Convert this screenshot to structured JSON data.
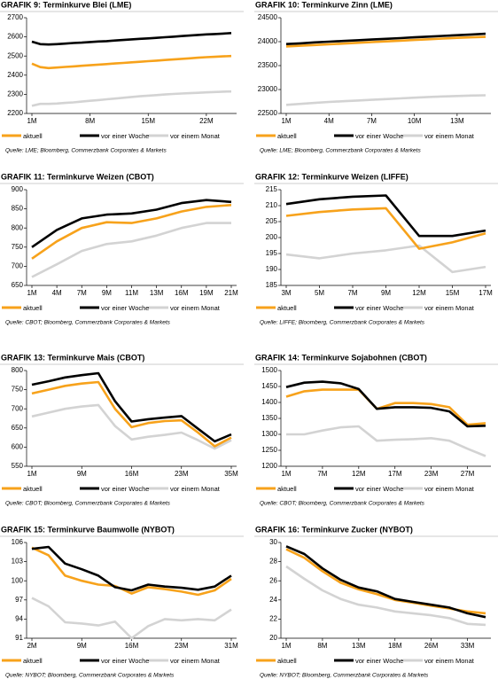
{
  "chart_data": [
    {
      "type": "line",
      "title": "GRAFIK 9: Terminkurve Blei (LME)",
      "source": "Quelle: LME; Bloomberg, Commerzbank Corporates & Markets",
      "categories": [
        "1M",
        null,
        null,
        null,
        null,
        null,
        null,
        "8M",
        null,
        null,
        null,
        null,
        null,
        null,
        "15M",
        null,
        null,
        null,
        null,
        null,
        null,
        "22M",
        null,
        null,
        null
      ],
      "ylim": [
        2200,
        2700
      ],
      "yticks": [
        2200,
        2300,
        2400,
        2500,
        2600,
        2700
      ],
      "series": [
        {
          "name": "aktuell",
          "color": "#f7a21b",
          "values": [
            2460,
            2442,
            2437,
            2440,
            2443,
            2446,
            2449,
            2452,
            2455,
            2458,
            2461,
            2464,
            2467,
            2470,
            2473,
            2476,
            2479,
            2482,
            2485,
            2488,
            2491,
            2494,
            2496,
            2498,
            2500
          ]
        },
        {
          "name": "vor einer Woche",
          "color": "#000000",
          "values": [
            2575,
            2562,
            2560,
            2562,
            2565,
            2568,
            2570,
            2573,
            2576,
            2578,
            2581,
            2584,
            2587,
            2590,
            2592,
            2595,
            2598,
            2601,
            2604,
            2607,
            2610,
            2613,
            2615,
            2617,
            2620
          ]
        },
        {
          "name": "vor einem Monat",
          "color": "#d3d3d3",
          "values": [
            2240,
            2250,
            2250,
            2252,
            2255,
            2258,
            2262,
            2266,
            2270,
            2274,
            2278,
            2282,
            2286,
            2290,
            2293,
            2296,
            2299,
            2302,
            2304,
            2306,
            2308,
            2310,
            2312,
            2314,
            2315
          ]
        }
      ]
    },
    {
      "type": "line",
      "title": "GRAFIK 10: Terminkurve Zinn (LME)",
      "source": "Quelle: LME; Bloomberg, Commerzbank Corporates & Markets",
      "categories": [
        "1M",
        null,
        null,
        "4M",
        null,
        null,
        "7M",
        null,
        null,
        "10M",
        null,
        null,
        "13M",
        null,
        null
      ],
      "ylim": [
        22500,
        24500
      ],
      "yticks": [
        22500,
        23000,
        23500,
        24000,
        24500
      ],
      "series": [
        {
          "name": "aktuell",
          "color": "#f7a21b",
          "values": [
            23900,
            23915,
            23930,
            23945,
            23960,
            23975,
            23990,
            24005,
            24020,
            24035,
            24050,
            24065,
            24080,
            24090,
            24100
          ]
        },
        {
          "name": "vor einer Woche",
          "color": "#000000",
          "values": [
            23950,
            23965,
            23985,
            24000,
            24015,
            24030,
            24045,
            24060,
            24075,
            24090,
            24105,
            24120,
            24135,
            24150,
            24165
          ]
        },
        {
          "name": "vor einem Monat",
          "color": "#d3d3d3",
          "values": [
            22680,
            22700,
            22720,
            22740,
            22755,
            22770,
            22785,
            22800,
            22815,
            22830,
            22845,
            22855,
            22865,
            22875,
            22880
          ]
        }
      ]
    },
    {
      "type": "line",
      "title": "GRAFIK 11: Terminkurve Weizen (CBOT)",
      "source": "Quelle: CBOT; Bloomberg, Commerzbank Corporates & Markets",
      "categories": [
        "1M",
        "4M",
        "7M",
        "9M",
        "11M",
        "13M",
        "16M",
        "19M",
        "21M"
      ],
      "ylim": [
        650,
        900
      ],
      "yticks": [
        650,
        700,
        750,
        800,
        850,
        900
      ],
      "series": [
        {
          "name": "aktuell",
          "color": "#f7a21b",
          "values": [
            720,
            765,
            800,
            815,
            813,
            825,
            843,
            855,
            860
          ]
        },
        {
          "name": "vor einer Woche",
          "color": "#000000",
          "values": [
            750,
            795,
            825,
            835,
            838,
            848,
            865,
            873,
            868
          ]
        },
        {
          "name": "vor einem Monat",
          "color": "#d3d3d3",
          "values": [
            672,
            705,
            740,
            758,
            765,
            780,
            800,
            813,
            813
          ]
        }
      ]
    },
    {
      "type": "line",
      "title": "GRAFIK 12: Terminkurve Weizen (LIFFE)",
      "source": "Quelle: LIFFE; Bloomberg, Commerzbank Corporates & Markets",
      "categories": [
        "3M",
        "5M",
        "7M",
        "9M",
        "12M",
        "15M",
        "17M"
      ],
      "ylim": [
        185,
        215
      ],
      "yticks": [
        185,
        190,
        195,
        200,
        205,
        210,
        215
      ],
      "series": [
        {
          "name": "aktuell",
          "color": "#f7a21b",
          "values": [
            206.8,
            208,
            208.8,
            209.2,
            196.5,
            198.5,
            201.3
          ]
        },
        {
          "name": "vor einer Woche",
          "color": "#000000",
          "values": [
            210.5,
            212,
            212.8,
            213.2,
            200.5,
            200.5,
            202.2
          ]
        },
        {
          "name": "vor einem Monat",
          "color": "#d3d3d3",
          "values": [
            194.7,
            193.5,
            195,
            196,
            197.5,
            189.2,
            190.8
          ]
        }
      ]
    },
    {
      "type": "line",
      "title": "GRAFIK 13: Terminkurve Mais (CBOT)",
      "source": "Quelle: CBOT; Bloomberg, Commerzbank Corporates & Markets",
      "categories": [
        "1M",
        null,
        null,
        "9M",
        null,
        null,
        "16M",
        null,
        null,
        "23M",
        null,
        null,
        "35M"
      ],
      "ylim": [
        550,
        800
      ],
      "yticks": [
        550,
        600,
        650,
        700,
        750,
        800
      ],
      "series": [
        {
          "name": "aktuell",
          "color": "#f7a21b",
          "values": [
            740,
            750,
            760,
            766,
            770,
            700,
            652,
            663,
            668,
            670,
            638,
            602,
            625
          ]
        },
        {
          "name": "vor einer Woche",
          "color": "#000000",
          "values": [
            763,
            772,
            782,
            788,
            793,
            720,
            667,
            673,
            677,
            681,
            648,
            615,
            633
          ]
        },
        {
          "name": "vor einem Monat",
          "color": "#d3d3d3",
          "values": [
            680,
            690,
            700,
            706,
            710,
            655,
            620,
            627,
            632,
            638,
            618,
            596,
            618
          ]
        }
      ]
    },
    {
      "type": "line",
      "title": "GRAFIK 14: Terminkurve Sojabohnen (CBOT)",
      "source": "Quelle: CBOT; Bloomberg, Commerzbank Corporates & Markets",
      "categories": [
        "1M",
        null,
        "7M",
        null,
        "12M",
        null,
        "17M",
        null,
        "23M",
        null,
        "27M",
        null
      ],
      "ylim": [
        1200,
        1500
      ],
      "yticks": [
        1200,
        1250,
        1300,
        1350,
        1400,
        1450,
        1500
      ],
      "series": [
        {
          "name": "aktuell",
          "color": "#f7a21b",
          "values": [
            1418,
            1435,
            1440,
            1440,
            1440,
            1380,
            1398,
            1398,
            1395,
            1385,
            1330,
            1335
          ]
        },
        {
          "name": "vor einer Woche",
          "color": "#000000",
          "values": [
            1448,
            1462,
            1465,
            1460,
            1442,
            1380,
            1385,
            1385,
            1383,
            1372,
            1325,
            1327
          ]
        },
        {
          "name": "vor einem Monat",
          "color": "#d3d3d3",
          "values": [
            1300,
            1300,
            1312,
            1322,
            1325,
            1280,
            1283,
            1285,
            1288,
            1280,
            1255,
            1232
          ]
        }
      ]
    },
    {
      "type": "line",
      "title": "GRAFIK 15: Terminkurve Baumwolle (NYBOT)",
      "source": "Quelle: NYBOT; Bloomberg, Commerzbank Corporates & Markets",
      "categories": [
        "2M",
        null,
        null,
        "9M",
        null,
        null,
        "16M",
        null,
        null,
        "23M",
        null,
        null,
        "31M"
      ],
      "ylim": [
        91,
        106
      ],
      "yticks": [
        91,
        94,
        97,
        100,
        103,
        106
      ],
      "series": [
        {
          "name": "aktuell",
          "color": "#f7a21b",
          "values": [
            105.2,
            104,
            100.8,
            100,
            99.4,
            99.2,
            98,
            99,
            98.7,
            98.3,
            97.8,
            98.5,
            100.3
          ]
        },
        {
          "name": "vor einer Woche",
          "color": "#000000",
          "values": [
            105,
            105.3,
            102.7,
            101.8,
            100.8,
            99,
            98.5,
            99.4,
            99.1,
            98.9,
            98.6,
            99.1,
            100.8
          ]
        },
        {
          "name": "vor einem Monat",
          "color": "#d3d3d3",
          "values": [
            97.3,
            96,
            93.5,
            93.3,
            93,
            93.6,
            91,
            92.9,
            94,
            93.8,
            94,
            93.8,
            95.5
          ]
        }
      ]
    },
    {
      "type": "line",
      "title": "GRAFIK 16: Terminkurve Zucker (NYBOT)",
      "source": "Quelle: NYBOT; Bloomberg, Commerzbank Corporates & Markets",
      "categories": [
        "1M",
        null,
        "8M",
        null,
        "13M",
        null,
        "18M",
        null,
        "26M",
        null,
        "33M",
        null
      ],
      "ylim": [
        20,
        30
      ],
      "yticks": [
        20,
        22,
        24,
        26,
        28,
        30
      ],
      "series": [
        {
          "name": "aktuell",
          "color": "#f7a21b",
          "values": [
            29.3,
            28.4,
            27,
            25.8,
            25.1,
            24.6,
            24,
            23.7,
            23.4,
            23.1,
            22.8,
            22.6
          ]
        },
        {
          "name": "vor einer Woche",
          "color": "#000000",
          "values": [
            29.6,
            28.8,
            27.3,
            26.1,
            25.3,
            24.9,
            24.1,
            23.8,
            23.5,
            23.2,
            22.6,
            22.2
          ]
        },
        {
          "name": "vor einem Monat",
          "color": "#d3d3d3",
          "values": [
            27.5,
            26.2,
            25,
            24.1,
            23.5,
            23.2,
            22.8,
            22.6,
            22.4,
            22.1,
            21.5,
            21.4
          ]
        }
      ]
    }
  ]
}
